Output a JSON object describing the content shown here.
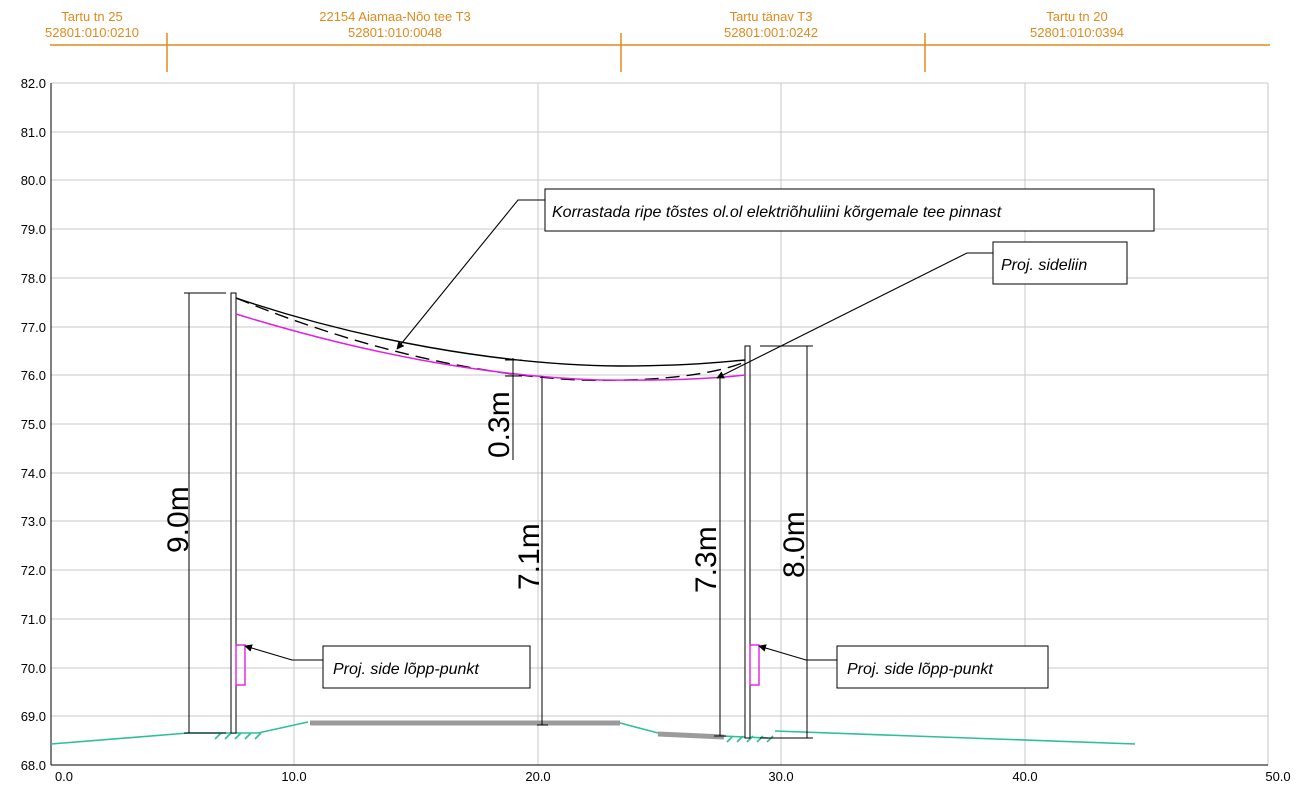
{
  "colors": {
    "parcel": "#E08A1E",
    "grid": "#C8C8C8",
    "axis": "#000000",
    "ground": "#2DBE9B",
    "road": "#9B9B9B",
    "proj_cable": "#E020E0",
    "existing_line": "#000000"
  },
  "parcels": [
    {
      "name": "Tartu tn 25",
      "code": "52801:010:0210"
    },
    {
      "name": "22154 Aiamaa-Nõo tee T3",
      "code": "52801:010:0048"
    },
    {
      "name": "Tartu tänav T3",
      "code": "52801:001:0242"
    },
    {
      "name": "Tartu tn 20",
      "code": "52801:010:0394"
    }
  ],
  "parcel_boundaries": [
    4.5,
    23.2,
    35.7
  ],
  "axes": {
    "x_range": [
      0,
      50
    ],
    "y_range": [
      68,
      82
    ],
    "x_ticks": [
      "0.0",
      "10.0",
      "20.0",
      "30.0",
      "40.0",
      "50.0"
    ],
    "y_ticks": [
      "82.0",
      "81.0",
      "80.0",
      "79.0",
      "78.0",
      "77.0",
      "76.0",
      "75.0",
      "74.0",
      "73.0",
      "72.0",
      "71.0",
      "70.0",
      "69.0",
      "68.0"
    ]
  },
  "dimensions": {
    "left_pole_height": "9.0m",
    "sag_gap": "0.3m",
    "mid_clearance": "7.1m",
    "right_clearance": "7.3m",
    "right_pole_height": "8.0m"
  },
  "callouts": {
    "raise_sag": "Korrastada ripe tõstes ol.ol elektriõhuliini kõrgemale tee pinnast",
    "proj_cable": "Proj. sideliin",
    "end_point_left": "Proj. side lõpp-punkt",
    "end_point_right": "Proj. side lõpp-punkt"
  }
}
